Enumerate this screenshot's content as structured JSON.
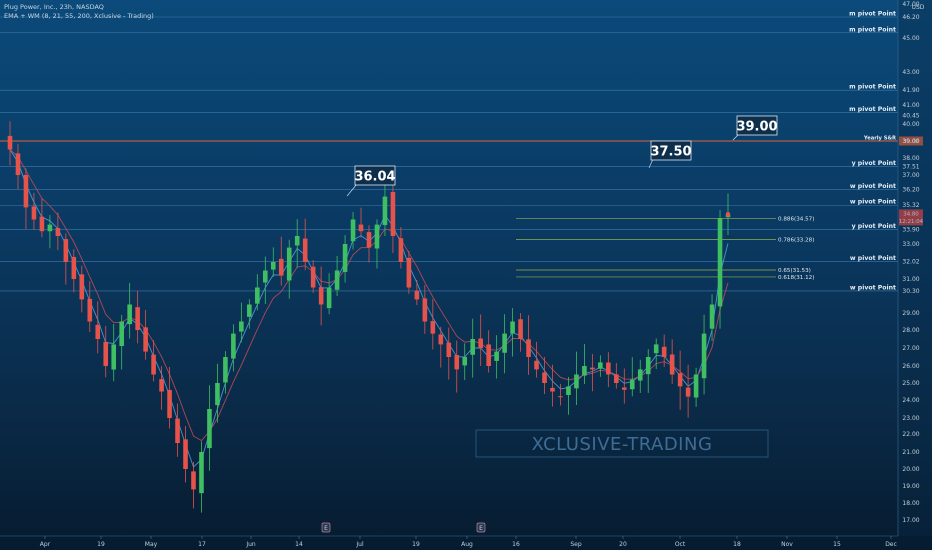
{
  "header": {
    "title": "Plug Power, Inc., 23h, NASDAQ",
    "indicator": "EMA + WM (8, 21, 55, 200, Xclusive - Trading)"
  },
  "axis": {
    "currency": "USD",
    "price_ticks": [
      "47.00",
      "46.20",
      "45.00",
      "43.00",
      "41.90",
      "41.00",
      "40.45",
      "40.00",
      "39.00",
      "38.00",
      "37.51",
      "37.00",
      "36.20",
      "35.32",
      "34.80",
      "33.90",
      "33.00",
      "32.02",
      "31.00",
      "30.30",
      "29.00",
      "28.00",
      "27.00",
      "26.00",
      "25.00",
      "24.00",
      "23.00",
      "22.00",
      "21.00",
      "20.00",
      "19.00",
      "18.00",
      "17.00"
    ],
    "date_ticks": [
      "Apr",
      "19",
      "May",
      "17",
      "Jun",
      "14",
      "Jul",
      "19",
      "Aug",
      "16",
      "Sep",
      "20",
      "Oct",
      "18",
      "Nov",
      "15",
      "Dec"
    ],
    "event_markers": [
      "E",
      "E"
    ]
  },
  "levels": [
    {
      "label": "m pivot Point",
      "price": 46.2
    },
    {
      "label": "m pivot Point",
      "price": 45.3
    },
    {
      "label": "m pivot Point",
      "price": 41.9
    },
    {
      "label": "m pivot Point",
      "price": 40.6
    },
    {
      "label": "Yearly S&R",
      "price": 39.0
    },
    {
      "label": "y pivot Point",
      "price": 37.51
    },
    {
      "label": "w pivot Point",
      "price": 36.2
    },
    {
      "label": "w pivot Point",
      "price": 35.32
    },
    {
      "label": "y pivot Point",
      "price": 33.9
    },
    {
      "label": "w pivot Point",
      "price": 32.02
    },
    {
      "label": "w pivot Point",
      "price": 30.3
    }
  ],
  "fibs": [
    {
      "label": "0.886(34.57)",
      "price": 34.57
    },
    {
      "label": "0.786(33.28)",
      "price": 33.28
    },
    {
      "label": "0.65(31.53)",
      "price": 31.53
    },
    {
      "label": "0.618(31.12)",
      "price": 31.12
    }
  ],
  "callouts": [
    {
      "text": "36.04",
      "price": 36.04
    },
    {
      "text": "37.50",
      "price": 37.5
    },
    {
      "text": "39.00",
      "price": 39.0
    }
  ],
  "last_price": {
    "value": "34.80",
    "sub": "12:21:04",
    "color": "#e04848"
  },
  "yearly_tag": "39.00",
  "watermark": "XCLUSIVE-TRADING",
  "colors": {
    "up": "#3fbf62",
    "down": "#e5534b",
    "level": "#4a90c8",
    "yearly": "#e2623d",
    "fib": "#93b04a"
  },
  "chart_data": {
    "type": "candlestick",
    "x": [
      "Apr",
      "19",
      "May",
      "17",
      "Jun",
      "14",
      "Jul",
      "19",
      "Aug",
      "16",
      "Sep",
      "20",
      "Oct",
      "18",
      "Nov",
      "15",
      "Dec"
    ],
    "ylim": [
      16.5,
      47.3
    ],
    "close_series": [
      38.5,
      37.0,
      35.2,
      34.5,
      33.8,
      34.2,
      33.5,
      32.0,
      31.0,
      29.8,
      28.5,
      27.5,
      26.0,
      27.2,
      28.5,
      29.5,
      28.0,
      26.8,
      25.5,
      24.5,
      23.0,
      21.5,
      20.0,
      18.8,
      21.0,
      23.5,
      25.0,
      26.5,
      27.8,
      28.5,
      29.5,
      30.5,
      31.5,
      32.0,
      31.2,
      32.8,
      33.5,
      32.0,
      30.5,
      29.5,
      30.5,
      31.5,
      33.0,
      34.5,
      33.8,
      32.8,
      34.2,
      35.8,
      33.5,
      32.0,
      30.5,
      29.8,
      28.5,
      27.8,
      27.2,
      26.5,
      25.8,
      26.5,
      27.5,
      27.0,
      26.0,
      26.8,
      27.8,
      28.5,
      27.5,
      26.5,
      25.8,
      25.0,
      24.5,
      24.2,
      24.8,
      25.5,
      26.0,
      25.8,
      26.2,
      25.5,
      25.0,
      24.6,
      25.2,
      25.8,
      26.5,
      27.2,
      26.5,
      25.5,
      24.8,
      24.2,
      25.5,
      27.8,
      29.5,
      34.57,
      34.8
    ]
  }
}
